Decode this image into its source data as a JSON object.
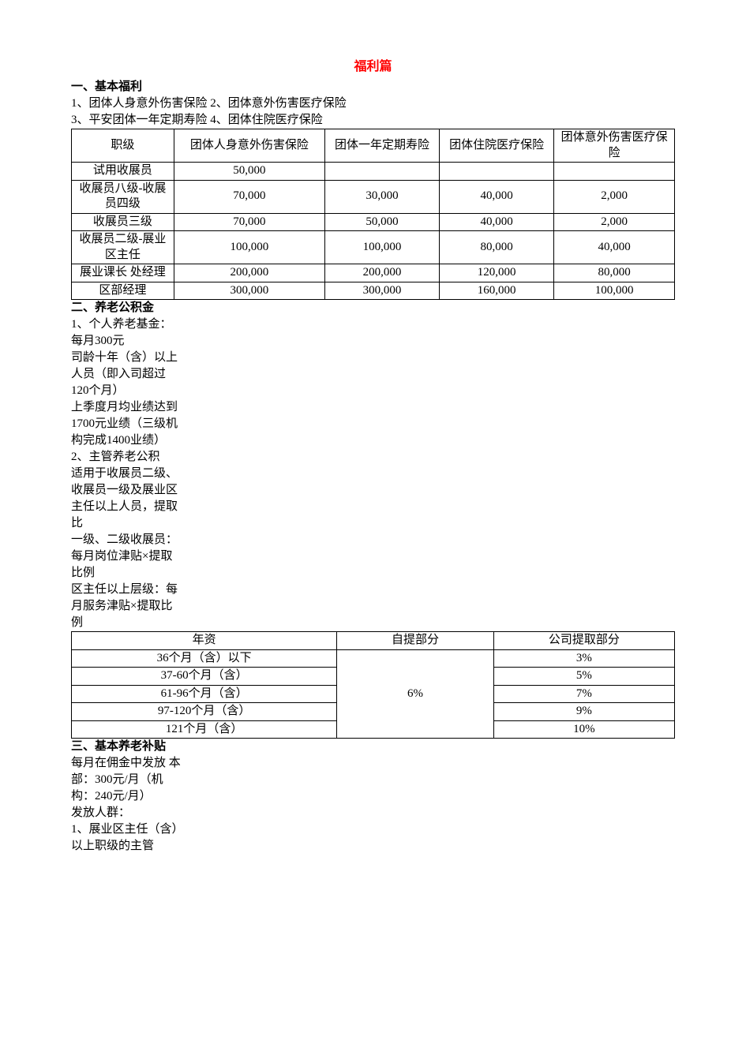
{
  "title": "福利篇",
  "sec1": {
    "heading": "一、基本福利",
    "line1": "1、团体人身意外伤害保险 2、团体意外伤害医疗保险",
    "line2": "3、平安团体一年定期寿险 4、团体住院医疗保险"
  },
  "table1": {
    "headers": {
      "c0": "职级",
      "c1": "团体人身意外伤害保险",
      "c2": "团体一年定期寿险",
      "c3": "团体住院医疗保险",
      "c4": "团体意外伤害医疗保险"
    },
    "widths": [
      "17%",
      "25%",
      "19%",
      "19%",
      "20%"
    ],
    "rows": [
      {
        "c0": "试用收展员",
        "c1": "50,000",
        "c2": "",
        "c3": "",
        "c4": ""
      },
      {
        "c0": "收展员八级-收展员四级",
        "c1": "70,000",
        "c2": "30,000",
        "c3": "40,000",
        "c4": "2,000"
      },
      {
        "c0": "收展员三级",
        "c1": "70,000",
        "c2": "50,000",
        "c3": "40,000",
        "c4": "2,000"
      },
      {
        "c0": "收展员二级-展业区主任",
        "c1": "100,000",
        "c2": "100,000",
        "c3": "80,000",
        "c4": "40,000"
      },
      {
        "c0": "展业课长 处经理",
        "c1": "200,000",
        "c2": "200,000",
        "c3": "120,000",
        "c4": "80,000"
      },
      {
        "c0": "区部经理",
        "c1": "300,000",
        "c2": "300,000",
        "c3": "160,000",
        "c4": "100,000"
      }
    ]
  },
  "sec2": {
    "heading": "二、养老公积金",
    "lines": [
      "1、个人养老基金：每月300元",
      "司龄十年（含）以上人员（即入司超过120个月）",
      "上季度月均业绩达到1700元业绩（三级机构完成1400业绩）",
      "2、主管养老公积",
      "适用于收展员二级、收展员一级及展业区主任以上人员，提取比",
      "一级、二级收展员：每月岗位津贴×提取比例",
      "区主任以上层级：每月服务津贴×提取比例"
    ]
  },
  "table2": {
    "headers": {
      "c0": "年资",
      "c1": "自提部分",
      "c2": "公司提取部分"
    },
    "widths": [
      "44%",
      "26%",
      "30%"
    ],
    "selfPart": "6%",
    "rows": [
      {
        "c0": "36个月（含）以下",
        "c2": "3%"
      },
      {
        "c0": "37-60个月（含）",
        "c2": "5%"
      },
      {
        "c0": "61-96个月（含）",
        "c2": "7%"
      },
      {
        "c0": "97-120个月（含）",
        "c2": "9%"
      },
      {
        "c0": "121个月（含）",
        "c2": "10%"
      }
    ]
  },
  "sec3": {
    "heading": "三、基本养老补贴",
    "lines": [
      "每月在佣金中发放 本部：300元/月（机构：240元/月）",
      "发放人群：",
      "1、展业区主任（含）以上职级的主管"
    ]
  },
  "style": {
    "titleColor": "#ff0000",
    "borderColor": "#000000",
    "textColor": "#000000",
    "background": "#ffffff",
    "fontSizeBody": 15,
    "fontSizeTitle": 16
  }
}
